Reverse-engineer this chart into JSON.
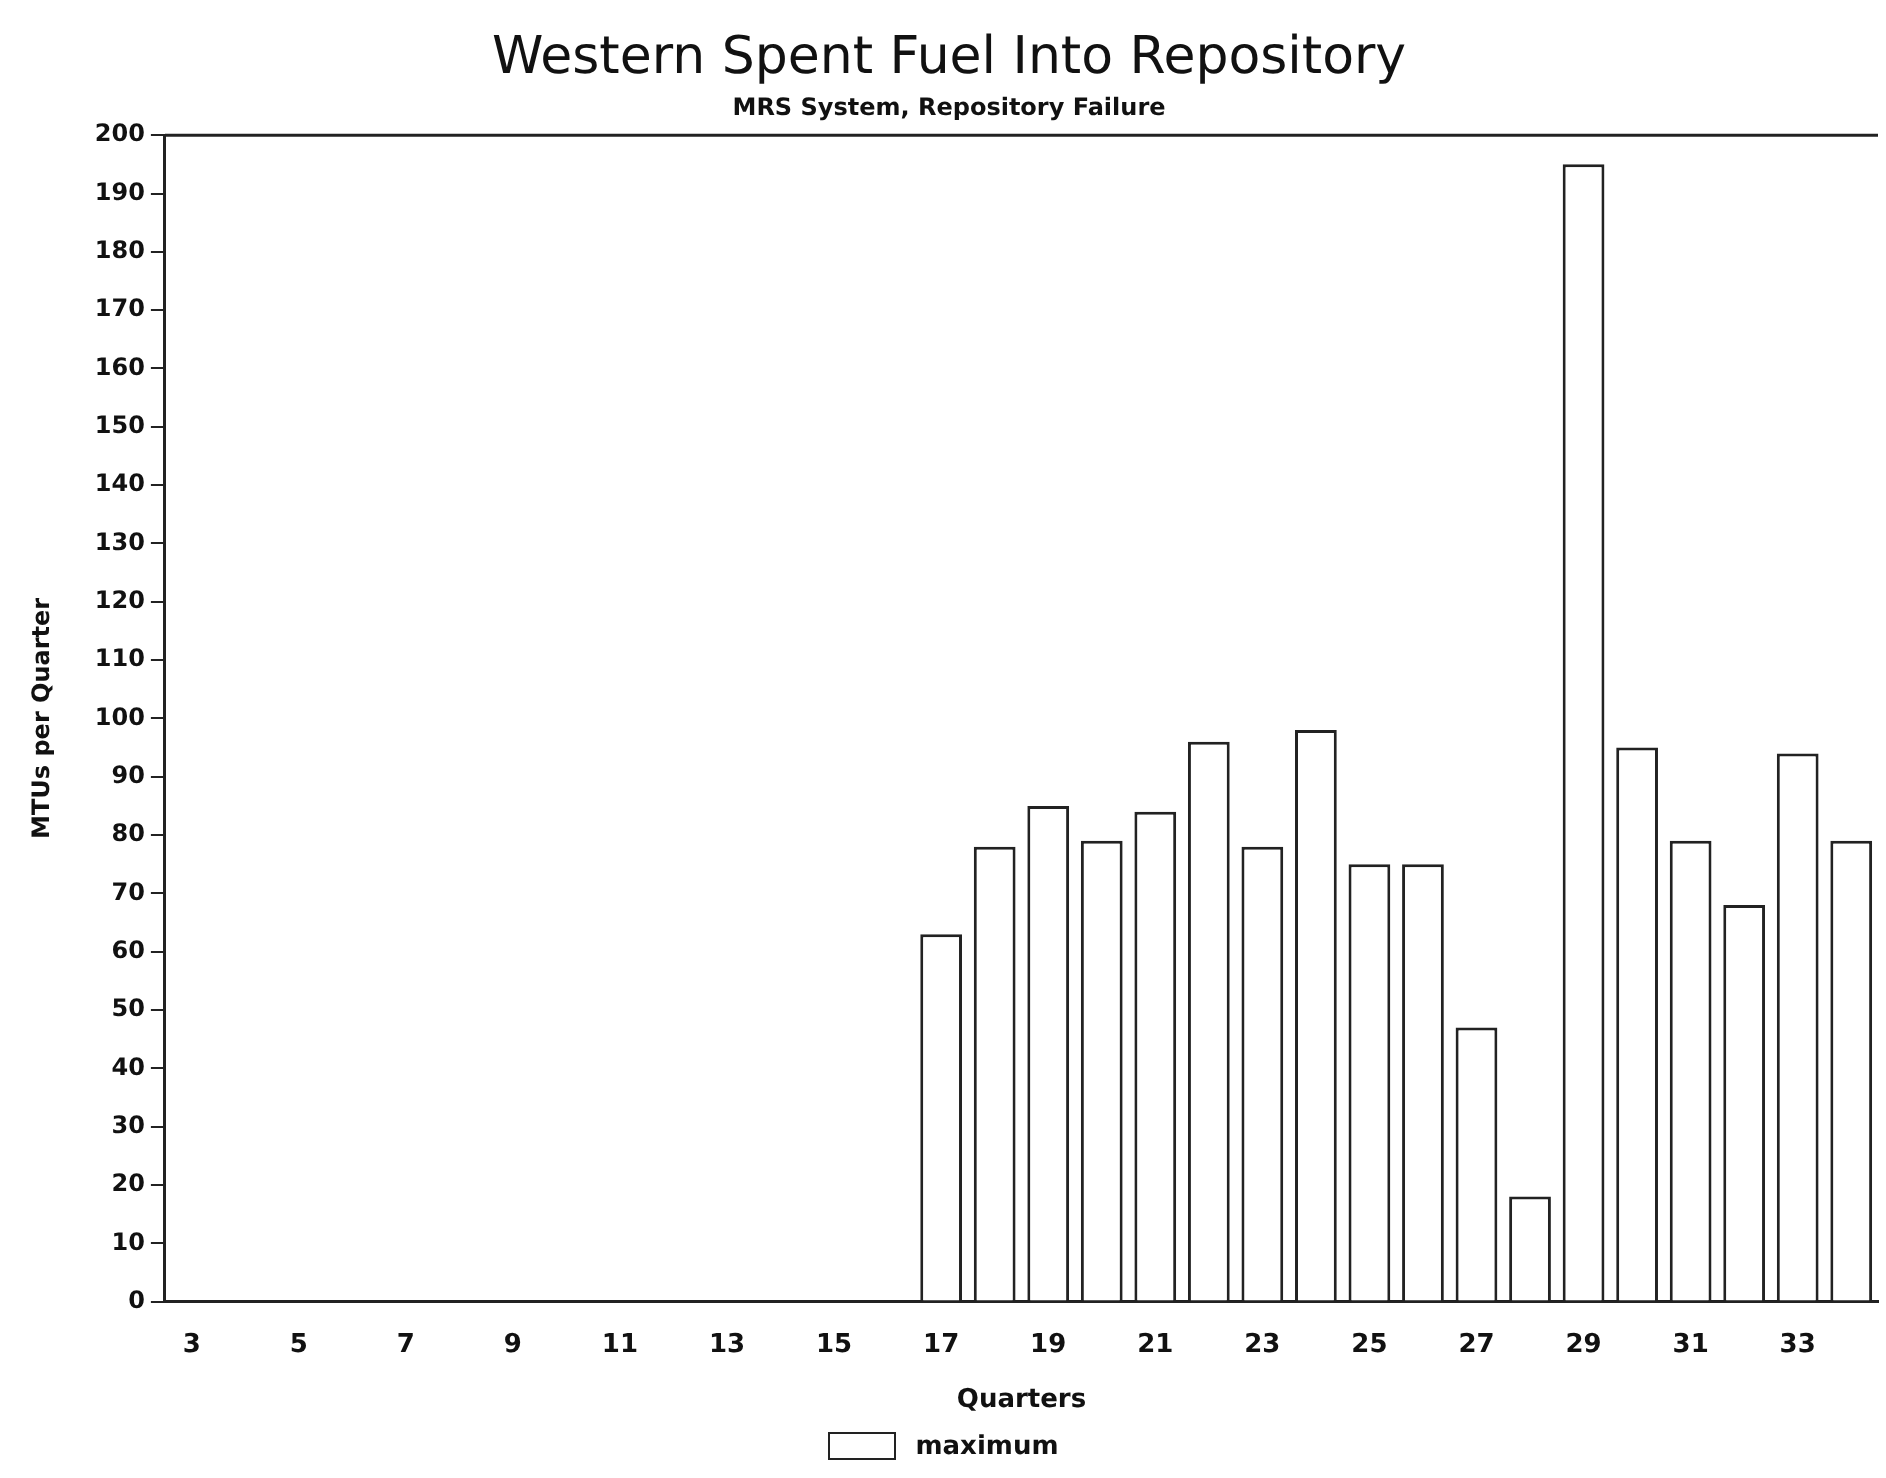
{
  "chart_data": {
    "type": "bar",
    "title": "Western Spent Fuel Into Repository",
    "subtitle": "MRS System, Repository Failure",
    "xlabel": "Quarters",
    "ylabel": "MTUs per Quarter",
    "categories": [
      "3",
      null,
      "5",
      null,
      "7",
      null,
      "9",
      null,
      "11",
      null,
      "13",
      null,
      "15",
      null,
      "17",
      null,
      "19",
      null,
      "21",
      null,
      "23",
      null,
      "25",
      null,
      "27",
      null,
      "29",
      null,
      "31",
      null,
      "33",
      null
    ],
    "series": [
      {
        "name": "maximum",
        "color": "#ffffff",
        "values": [
          0,
          0,
          0,
          0,
          0,
          0,
          0,
          0,
          0,
          0,
          0,
          0,
          0,
          0,
          63,
          78,
          85,
          79,
          84,
          96,
          78,
          98,
          75,
          75,
          47,
          18,
          195,
          95,
          79,
          68,
          94,
          79
        ]
      }
    ],
    "ylim": [
      0,
      200
    ],
    "yticks": [
      0,
      10,
      20,
      30,
      40,
      50,
      60,
      70,
      80,
      90,
      100,
      110,
      120,
      130,
      140,
      150,
      160,
      170,
      180,
      190,
      200
    ],
    "grid": false,
    "legend": "bottom"
  }
}
